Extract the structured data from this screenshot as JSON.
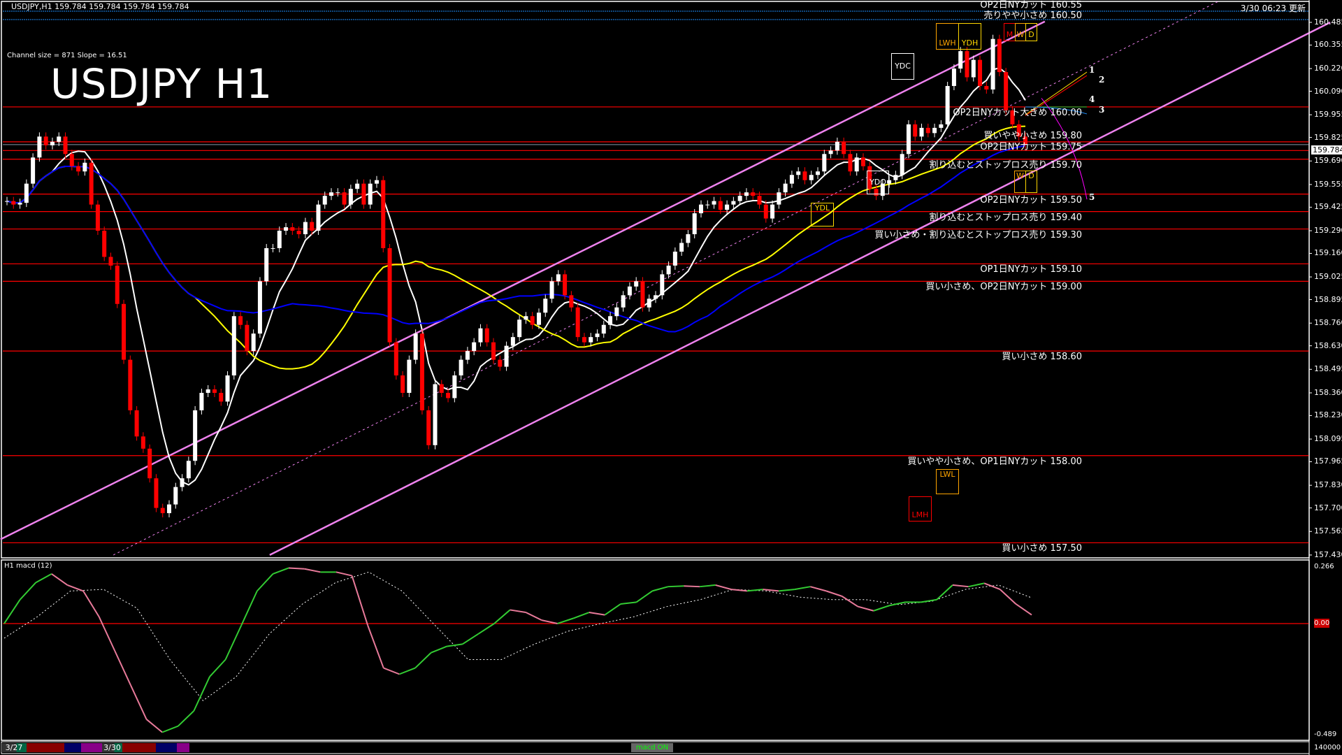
{
  "header": {
    "symbol_info": "USDJPY,H1  159.784 159.784 159.784 159.784",
    "updated": "3/30 06:23 更新",
    "channel_info": "Channel size = 871 Slope = 16.51",
    "big_title": "USDJPY H1",
    "macd_title": "H1  macd (12)"
  },
  "colors": {
    "up": "#ffffff",
    "down": "#ff0000",
    "level": "#ff0000",
    "channel": "#ee82ee",
    "ma_fast": "#ffffff",
    "ma_mid": "#ffff00",
    "ma_slow": "#0000ff",
    "macd_up": "#33cc33",
    "macd_down": "#e87a9a",
    "signal": "#ffffff"
  },
  "chart_data": [
    {
      "type": "candlestick",
      "symbol": "USDJPY",
      "timeframe": "H1",
      "ylim": [
        157.43,
        160.55
      ],
      "current_price": "159.784",
      "y_ticks": [
        "160.485",
        "160.355",
        "160.220",
        "160.090",
        "159.955",
        "159.825",
        "159.690",
        "159.555",
        "159.425",
        "159.290",
        "159.160",
        "159.025",
        "158.895",
        "158.760",
        "158.630",
        "158.495",
        "158.360",
        "158.230",
        "158.095",
        "157.965",
        "157.830",
        "157.700",
        "157.565",
        "157.430"
      ],
      "closes": [
        159.46,
        159.44,
        159.45,
        159.56,
        159.71,
        159.83,
        159.78,
        159.8,
        159.83,
        159.73,
        159.66,
        159.63,
        159.68,
        159.44,
        159.29,
        159.14,
        159.09,
        158.87,
        158.55,
        158.26,
        158.11,
        158.04,
        157.87,
        157.7,
        157.67,
        157.72,
        157.82,
        157.87,
        157.97,
        158.26,
        158.36,
        158.38,
        158.36,
        158.31,
        158.46,
        158.8,
        158.75,
        158.6,
        158.7,
        159.0,
        159.19,
        159.19,
        159.29,
        159.31,
        159.29,
        159.27,
        159.34,
        159.29,
        159.44,
        159.49,
        159.51,
        159.51,
        159.44,
        159.53,
        159.56,
        159.44,
        159.56,
        159.58,
        159.19,
        158.65,
        158.46,
        158.36,
        158.55,
        158.7,
        158.26,
        158.06,
        158.41,
        158.36,
        158.33,
        158.46,
        158.55,
        158.6,
        158.65,
        158.73,
        158.65,
        158.55,
        158.51,
        158.63,
        158.68,
        158.78,
        158.8,
        158.75,
        158.82,
        158.9,
        159.0,
        159.04,
        158.92,
        158.85,
        158.68,
        158.65,
        158.68,
        158.7,
        158.75,
        158.8,
        158.85,
        158.92,
        158.97,
        159.0,
        158.85,
        158.9,
        158.92,
        159.04,
        159.09,
        159.17,
        159.22,
        159.27,
        159.39,
        159.44,
        159.44,
        159.46,
        159.41,
        159.44,
        159.46,
        159.49,
        159.51,
        159.49,
        159.44,
        159.36,
        159.44,
        159.51,
        159.56,
        159.61,
        159.63,
        159.58,
        159.61,
        159.63,
        159.73,
        159.75,
        159.8,
        159.73,
        159.63,
        159.71,
        159.66,
        159.53,
        159.49,
        159.56,
        159.58,
        159.61,
        159.73,
        159.9,
        159.83,
        159.88,
        159.85,
        159.88,
        159.9,
        160.12,
        160.22,
        160.32,
        160.17,
        160.27,
        160.12,
        160.1,
        160.39,
        160.2,
        159.98,
        159.9,
        159.83,
        159.784
      ],
      "channel": {
        "upper": [
          [
            -1,
            157.52
          ],
          [
            160,
            160.49
          ]
        ],
        "lower": [
          [
            40.5,
            157.43
          ],
          [
            204,
            160.485
          ]
        ],
        "middle": [
          [
            16.4,
            157.43
          ],
          [
            187,
            160.61
          ]
        ]
      },
      "levels": [
        {
          "price": 160.55,
          "label": "OP2日NYカット 160.55",
          "color": "#1e90ff"
        },
        {
          "price": 160.5,
          "label": "売りやや小さめ 160.50",
          "color": "#1e90ff"
        },
        {
          "price": 160.0,
          "label": "OP2日NYカット大きめ 160.00",
          "color": "#ff0000"
        },
        {
          "price": 159.8,
          "label": "買いやや小さめ 159.80",
          "color": "#ff0000"
        },
        {
          "price": 159.75,
          "label": "OP2日NYカット 159.75",
          "color": "#ff0000"
        },
        {
          "price": 159.7,
          "label": "割り込むとストップロス売り 159.70",
          "color": "#ff0000"
        },
        {
          "price": 159.5,
          "label": "OP2日NYカット 159.50",
          "color": "#ff0000"
        },
        {
          "price": 159.4,
          "label": "割り込むとストップロス売り 159.40",
          "color": "#ff0000"
        },
        {
          "price": 159.3,
          "label": "買い小さめ・割り込むとストップロス売り 159.30",
          "color": "#ff0000"
        },
        {
          "price": 159.1,
          "label": "OP1日NYカット 159.10",
          "color": "#ff0000"
        },
        {
          "price": 159.0,
          "label": "買い小さめ、OP2日NYカット 159.00",
          "color": "#ff0000"
        },
        {
          "price": 158.6,
          "label": "買い小さめ 158.60",
          "color": "#ff0000"
        },
        {
          "price": 158.0,
          "label": "買いやや小さめ、OP1日NYカット 158.00",
          "color": "#ff0000"
        },
        {
          "price": 157.5,
          "label": "買い小さめ 157.50",
          "color": "#ff0000"
        }
      ],
      "markers": {
        "LWH": "LWH",
        "YDH": "YDH",
        "M": "M",
        "W": "W",
        "D": "D",
        "YDC": "YDC",
        "YDO": "YDO",
        "W2": "W",
        "D2": "D",
        "YDL": "YDL",
        "LWL": "LWL",
        "LMH": "LMH"
      },
      "projections": [
        "1",
        "2",
        "4",
        "3",
        "5"
      ]
    },
    {
      "type": "line",
      "title": "H1  macd (12)",
      "ylim": [
        -0.489,
        0.266
      ],
      "y_ticks": [
        "0.266",
        "0.00",
        "-0.489"
      ],
      "volume_label": "140000",
      "macd": [
        0,
        0.105,
        0.18,
        0.218,
        0.169,
        0.143,
        0.03,
        -0.12,
        -0.27,
        -0.42,
        -0.477,
        -0.45,
        -0.383,
        -0.233,
        -0.158,
        -0.008,
        0.143,
        0.218,
        0.244,
        0.24,
        0.226,
        0.226,
        0.21,
        -0.008,
        -0.195,
        -0.222,
        -0.195,
        -0.128,
        -0.1,
        -0.09,
        -0.045,
        0,
        0.06,
        0.049,
        0.015,
        0,
        0.023,
        0.049,
        0.038,
        0.086,
        0.094,
        0.143,
        0.162,
        0.165,
        0.162,
        0.169,
        0.15,
        0.143,
        0.15,
        0.143,
        0.15,
        0.162,
        0.143,
        0.12,
        0.075,
        0.056,
        0.079,
        0.094,
        0.094,
        0.105,
        0.169,
        0.162,
        0.177,
        0.15,
        0.086,
        0.038
      ],
      "signal": [
        -0.064,
        0.03,
        0.143,
        0.15,
        0.068,
        -0.158,
        -0.338,
        -0.233,
        -0.045,
        0.086,
        0.18,
        0.226,
        0.143,
        -0.008,
        -0.158,
        -0.158,
        -0.09,
        -0.034,
        0,
        0.03,
        0.075,
        0.105,
        0.15,
        0.143,
        0.116,
        0.105,
        0.105,
        0.083,
        0.098,
        0.15,
        0.169,
        0.113
      ]
    }
  ],
  "bottom_bar": {
    "date1": "3/27",
    "date2": "3/30",
    "macd_toggle": "macd ON"
  }
}
